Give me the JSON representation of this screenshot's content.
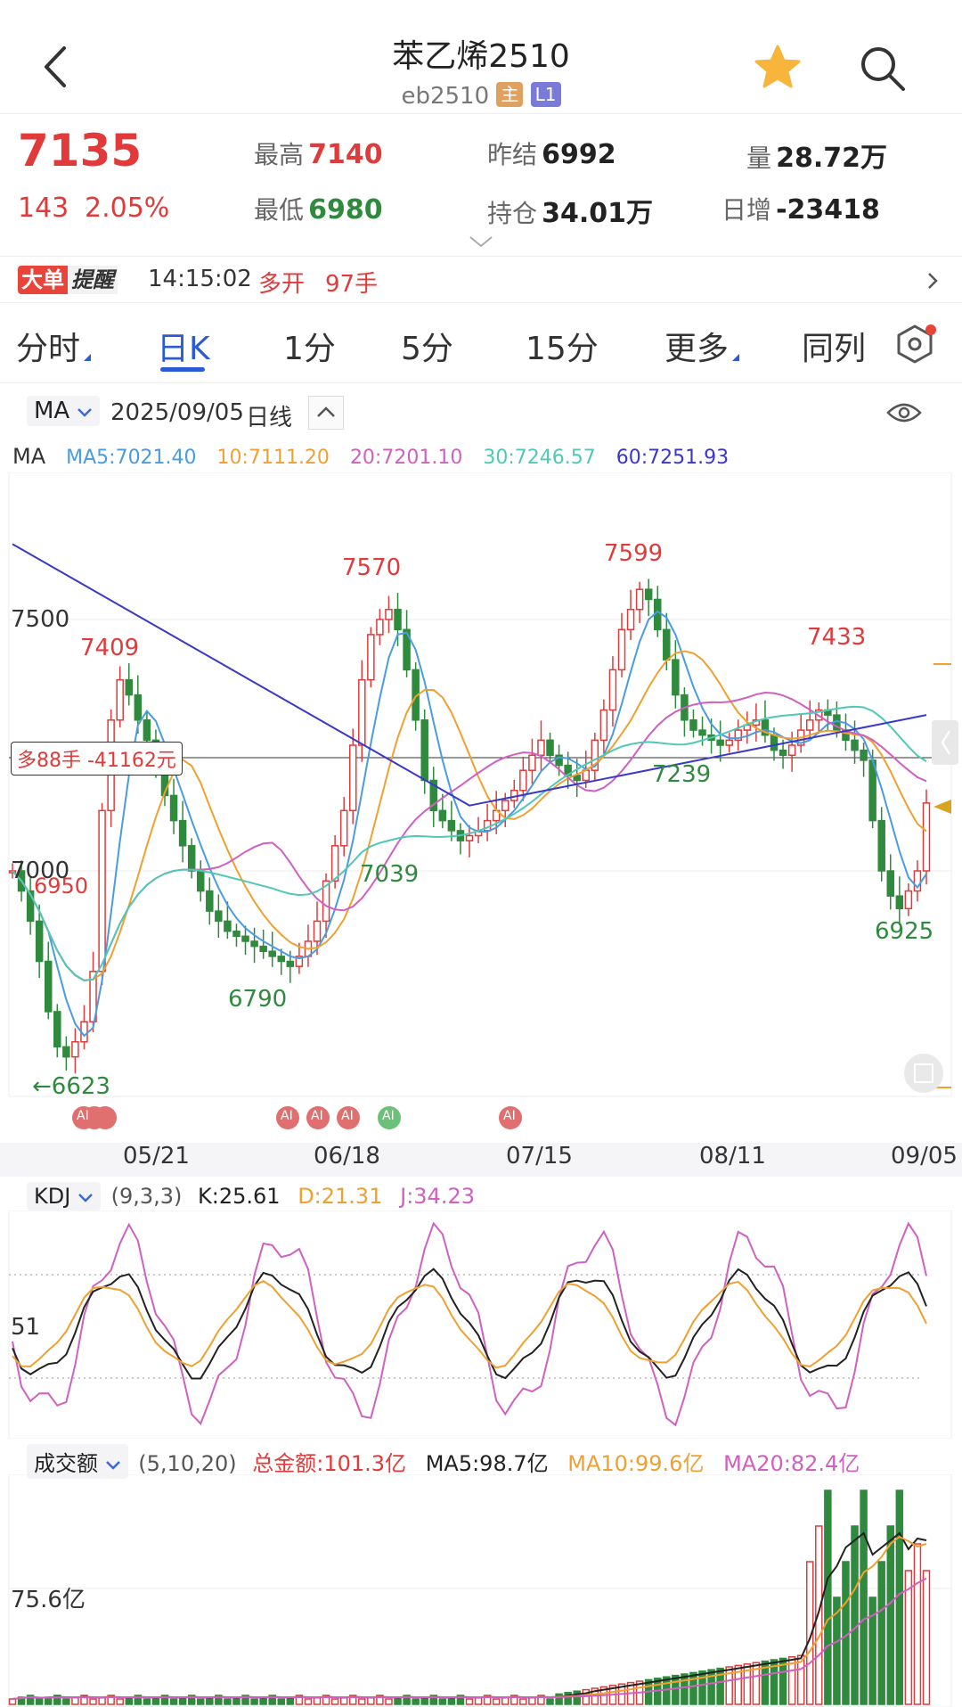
{
  "header": {
    "title": "苯乙烯2510",
    "code": "eb2510",
    "tag_main": "主",
    "tag_l1": "L1"
  },
  "quote": {
    "price": "7135",
    "change": "143",
    "change_pct": "2.05%",
    "high_label": "最高",
    "high": "7140",
    "low_label": "最低",
    "low": "6980",
    "prev_settle_label": "昨结",
    "prev_settle": "6992",
    "oi_label": "持仓",
    "oi": "34.01万",
    "volume_label": "量",
    "volume": "28.72万",
    "daily_inc_label": "日增",
    "daily_inc": "-23418"
  },
  "alert": {
    "badge_a": "大单",
    "badge_b": "提醒",
    "time": "14:15:02",
    "action": "多开",
    "qty": "97手"
  },
  "tabs": [
    {
      "label": "分时"
    },
    {
      "label": "日K"
    },
    {
      "label": "1分"
    },
    {
      "label": "5分"
    },
    {
      "label": "15分"
    },
    {
      "label": "更多"
    },
    {
      "label": "同列"
    }
  ],
  "controls": {
    "indicator": "MA",
    "date": "2025/09/05",
    "period": "日线"
  },
  "ma_legend": {
    "title": "MA",
    "ma5": "MA5:7021.40",
    "ma10": "10:7111.20",
    "ma20": "20:7201.10",
    "ma30": "30:7246.57",
    "ma60": "60:7251.93"
  },
  "colors": {
    "up": "#e03a3a",
    "down": "#2f8a3d",
    "ma5": "#4a9be0",
    "ma10": "#f0a030",
    "ma20": "#d060c0",
    "ma30": "#50c8b8",
    "ma60": "#3a38c8",
    "accent": "#2a5bd7"
  },
  "price_chart": {
    "y_labels": [
      "7500",
      "7000"
    ],
    "position_marker": "多88手 -41162元",
    "marker_left_value": "6950",
    "annotations": [
      "7409",
      "7570",
      "7599",
      "7433",
      "7039",
      "7239",
      "6790",
      "6925",
      "←6623"
    ],
    "ai_badge": "AI",
    "dates": [
      "05/21",
      "06/18",
      "07/15",
      "08/11",
      "09/05"
    ]
  },
  "kdj": {
    "name": "KDJ",
    "params": "(9,3,3)",
    "k": "K:25.61",
    "d": "D:21.31",
    "j": "J:34.23",
    "y_label": "51"
  },
  "volume_panel": {
    "name": "成交额",
    "params": "(5,10,20)",
    "total": "总金额:101.3亿",
    "ma5": "MA5:98.7亿",
    "ma10": "MA10:99.6亿",
    "ma20": "MA20:82.4亿",
    "y_label": "75.6亿"
  },
  "chart_data": {
    "type": "candlestick",
    "x": [
      "05/21",
      "06/18",
      "07/15",
      "08/11",
      "09/05"
    ],
    "y_gridlines": [
      7500,
      7000
    ],
    "annotated_points": [
      {
        "label": "←6623",
        "value": 6623,
        "kind": "low"
      },
      {
        "label": "7409",
        "value": 7409,
        "kind": "high"
      },
      {
        "label": "6790",
        "value": 6790,
        "kind": "low"
      },
      {
        "label": "7570",
        "value": 7570,
        "kind": "high"
      },
      {
        "label": "7039",
        "value": 7039,
        "kind": "low"
      },
      {
        "label": "7599",
        "value": 7599,
        "kind": "high"
      },
      {
        "label": "7239",
        "value": 7239,
        "kind": "low"
      },
      {
        "label": "7433",
        "value": 7433,
        "kind": "high"
      },
      {
        "label": "6925",
        "value": 6925,
        "kind": "low"
      }
    ],
    "last_close": 7135,
    "series": [
      {
        "name": "MA5",
        "last": 7021.4
      },
      {
        "name": "10",
        "last": 7111.2
      },
      {
        "name": "20",
        "last": 7201.1
      },
      {
        "name": "30",
        "last": 7246.57
      },
      {
        "name": "60",
        "last": 7251.93
      }
    ]
  }
}
